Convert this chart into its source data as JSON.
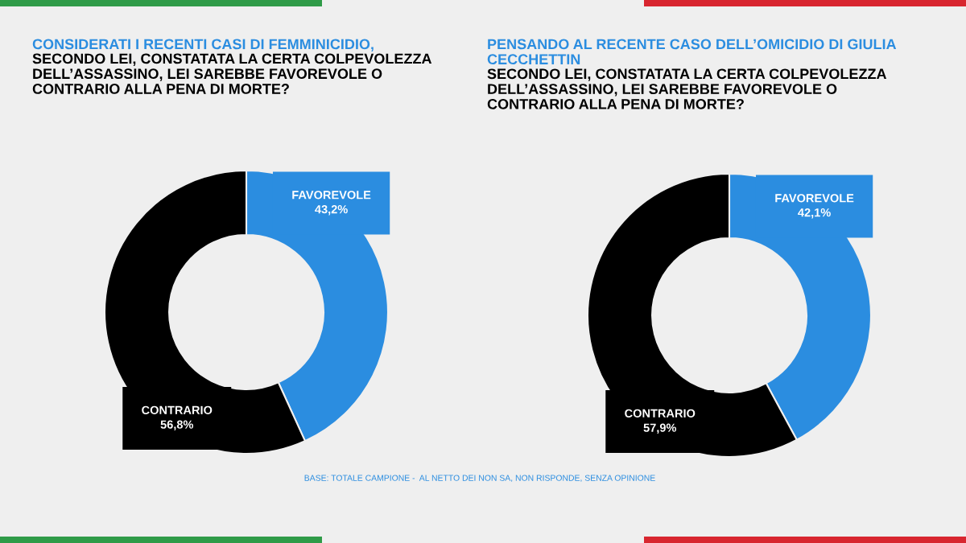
{
  "chart_data": [
    {
      "type": "donut",
      "title": "CONSIDERATI I RECENTI CASI DI FEMMINICIDIO,",
      "subtitle": "SECONDO LEI, CONSTATATA LA CERTA COLPEVOLEZZA DELL’ASSASSINO, LEI SAREBBE FAVOREVOLE O CONTRARIO ALLA PENA DI MORTE?",
      "categories": [
        "FAVOREVOLE",
        "CONTRARIO"
      ],
      "values": [
        43.2,
        56.8
      ],
      "colors": [
        "#2b8de0",
        "#000000"
      ],
      "value_labels": [
        "43,2%",
        "56,8%"
      ],
      "annotations": [
        "BASE: TOTALE CAMPIONE -  AL NETTO DEI NON SA, NON RISPONDE, SENZA OPINIONE"
      ]
    },
    {
      "type": "donut",
      "title": "PENSANDO AL RECENTE CASO DELL’OMICIDIO DI GIULIA CECCHETTIN",
      "subtitle": "SECONDO LEI, CONSTATATA LA CERTA COLPEVOLEZZA DELL’ASSASSINO, LEI SAREBBE FAVOREVOLE O CONTRARIO ALLA PENA DI MORTE?",
      "categories": [
        "FAVOREVOLE",
        "CONTRARIO"
      ],
      "values": [
        42.1,
        57.9
      ],
      "colors": [
        "#2b8de0",
        "#000000"
      ],
      "value_labels": [
        "42,1%",
        "57,9%"
      ]
    }
  ]
}
